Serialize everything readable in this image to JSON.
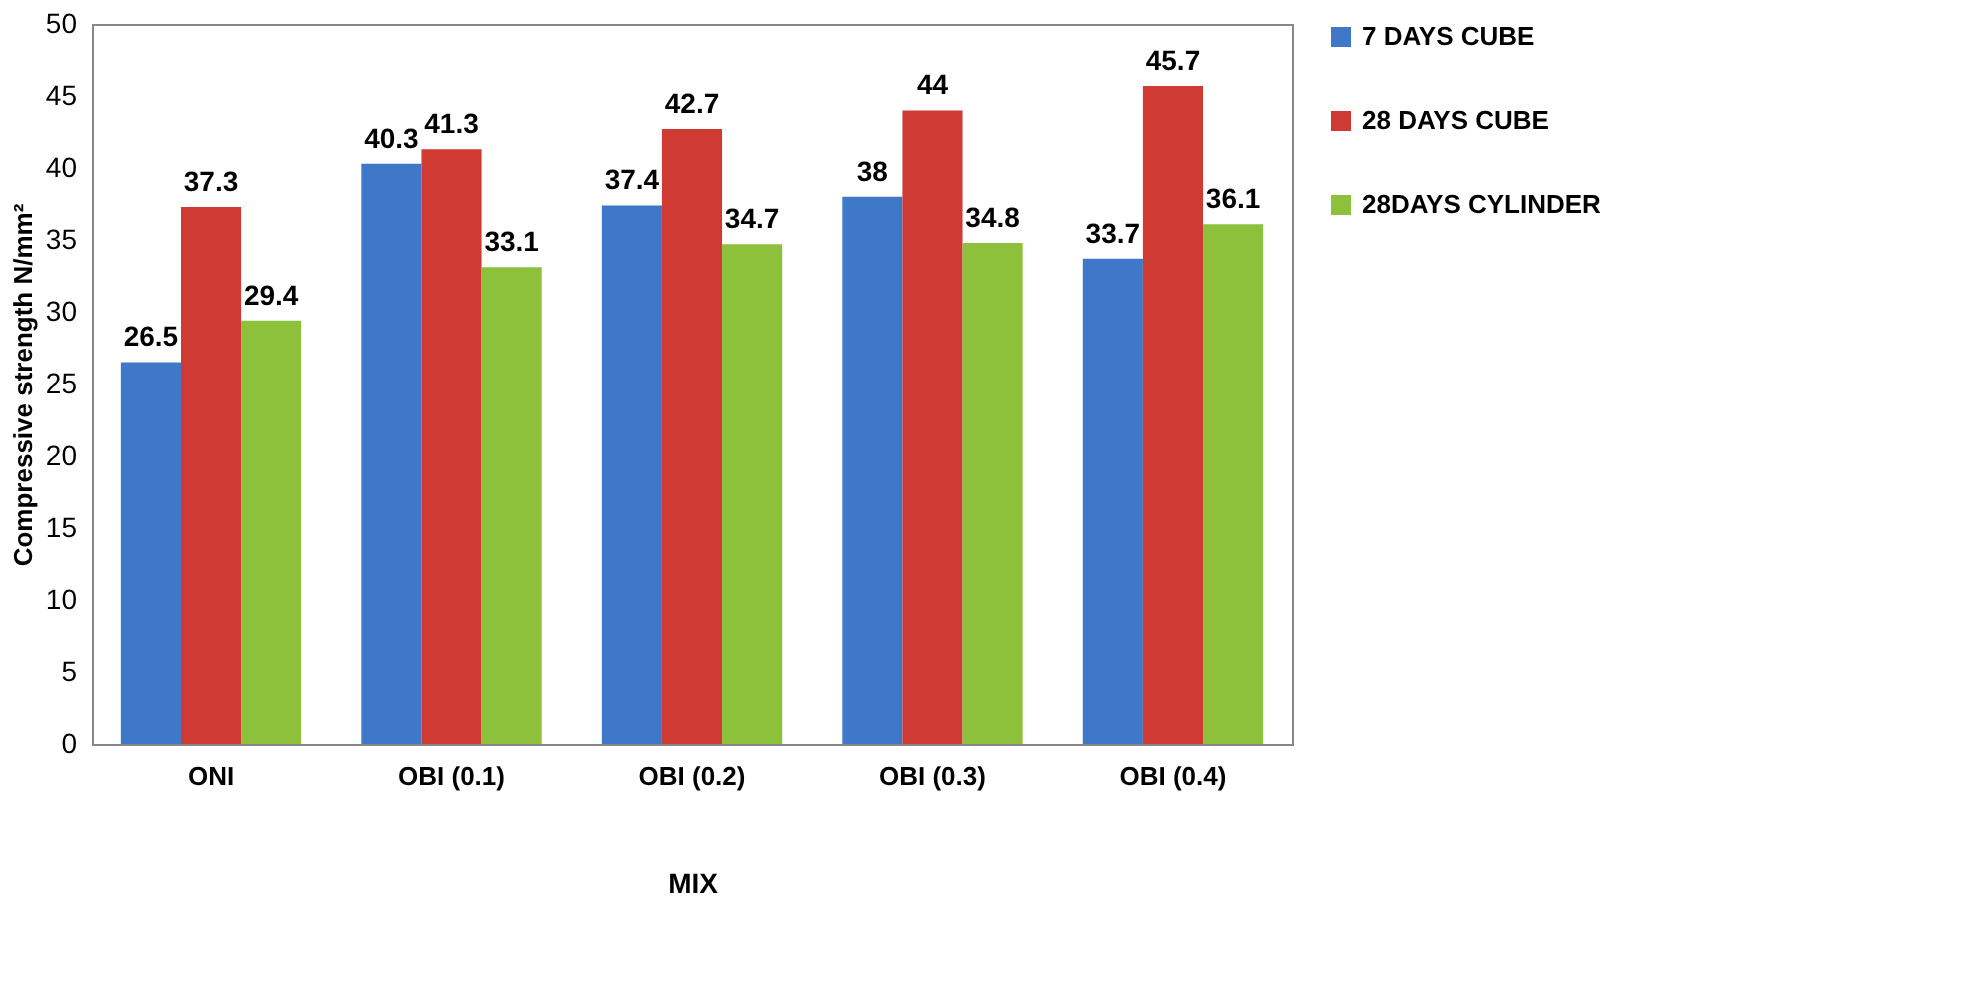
{
  "chart_data": {
    "type": "bar",
    "xlabel": "MIX",
    "ylabel": "Compressive strength N/mm²",
    "categories": [
      "ONI",
      "OBI (0.1)",
      "OBI (0.2)",
      "OBI (0.3)",
      "OBI (0.4)"
    ],
    "series": [
      {
        "name": "7 DAYS CUBE",
        "color": "#3f78c8",
        "values": [
          26.5,
          40.3,
          37.4,
          38,
          33.7
        ]
      },
      {
        "name": "28 DAYS CUBE",
        "color": "#d03a35",
        "values": [
          37.3,
          41.3,
          42.7,
          44,
          45.7
        ]
      },
      {
        "name": "28DAYS CYLINDER",
        "color": "#8dc13c",
        "values": [
          29.4,
          33.1,
          34.7,
          34.8,
          36.1
        ]
      }
    ],
    "ylim": [
      0,
      50
    ],
    "yticks": [
      0,
      5,
      10,
      15,
      20,
      25,
      30,
      35,
      40,
      45,
      50
    ],
    "grid": false,
    "legend": "right",
    "data_labels": true
  }
}
